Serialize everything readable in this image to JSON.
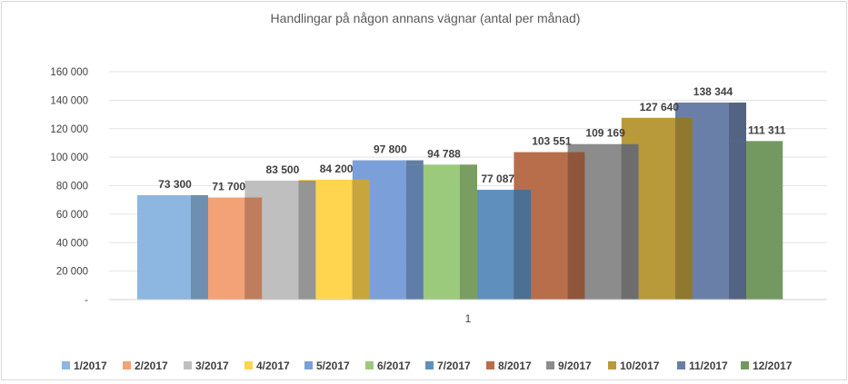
{
  "chart_data": {
    "type": "bar",
    "title": "Handlingar på någon annans vägnar (antal per månad)",
    "xlabel": "",
    "ylabel": "",
    "categories": [
      "1"
    ],
    "ylim": [
      0,
      160000
    ],
    "yticks": [
      0,
      20000,
      40000,
      60000,
      80000,
      100000,
      120000,
      140000,
      160000
    ],
    "ytick_labels": [
      "-",
      "20 000",
      "40 000",
      "60 000",
      "80 000",
      "100 000",
      "120 000",
      "140 000",
      "160 000"
    ],
    "grid": true,
    "legend_position": "bottom",
    "series": [
      {
        "name": "1/2017",
        "value": 73300,
        "label": "73 300",
        "color": "#8db7e0"
      },
      {
        "name": "2/2017",
        "value": 71700,
        "label": "71 700",
        "color": "#f3a277"
      },
      {
        "name": "3/2017",
        "value": 83500,
        "label": "83 500",
        "color": "#bfbfbf"
      },
      {
        "name": "4/2017",
        "value": 84200,
        "label": "84 200",
        "color": "#ffd54f"
      },
      {
        "name": "5/2017",
        "value": 97800,
        "label": "97 800",
        "color": "#7b9fd9"
      },
      {
        "name": "6/2017",
        "value": 94788,
        "label": "94 788",
        "color": "#9cca7c"
      },
      {
        "name": "7/2017",
        "value": 77087,
        "label": "77 087",
        "color": "#5f8fbd"
      },
      {
        "name": "8/2017",
        "value": 103551,
        "label": "103 551",
        "color": "#b96e4b"
      },
      {
        "name": "9/2017",
        "value": 109169,
        "label": "109 169",
        "color": "#8c8c8c"
      },
      {
        "name": "10/2017",
        "value": 127640,
        "label": "127 640",
        "color": "#b99a3b"
      },
      {
        "name": "11/2017",
        "value": 138344,
        "label": "138 344",
        "color": "#6a7fa8"
      },
      {
        "name": "12/2017",
        "value": 111311,
        "label": "111 311",
        "color": "#739860"
      }
    ]
  }
}
